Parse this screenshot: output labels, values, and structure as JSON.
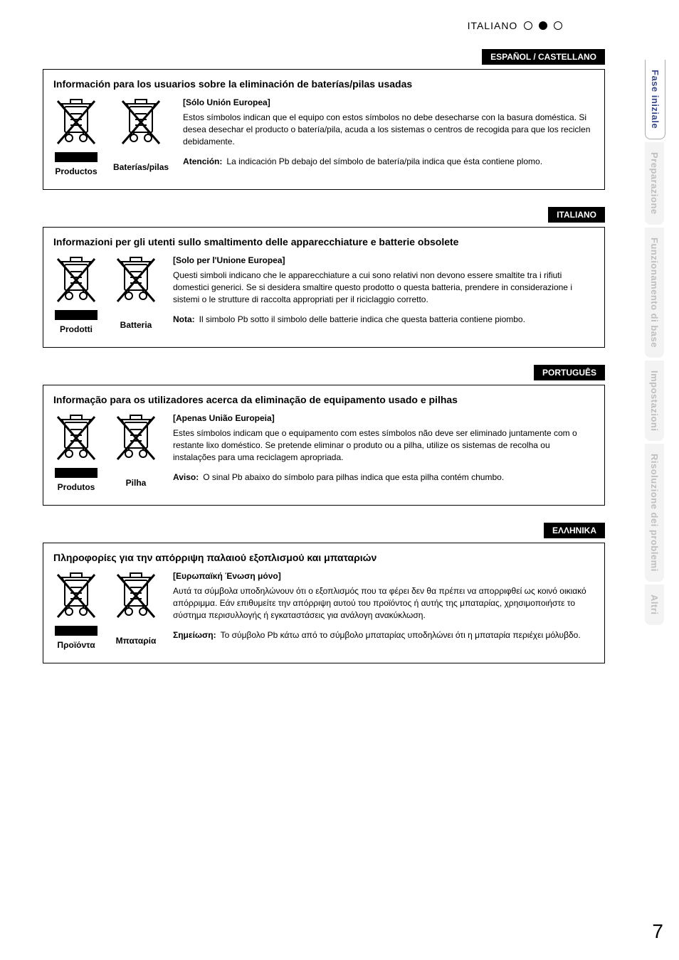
{
  "header_language": "ITALIANO",
  "page_number": "7",
  "side_tabs": [
    {
      "label": "Fase iniziale",
      "active": true
    },
    {
      "label": "Preparazione",
      "active": false
    },
    {
      "label": "Funzionamento di base",
      "active": false
    },
    {
      "label": "Impostazioni",
      "active": false
    },
    {
      "label": "Risoluzione dei problemi",
      "active": false
    },
    {
      "label": "Altri",
      "active": false
    }
  ],
  "sections": [
    {
      "badge": "ESPAÑOL / CASTELLANO",
      "title": "Información para los usuarios sobre la eliminación de baterías/pilas usadas",
      "product_label": "Productos",
      "battery_label": "Baterías/pilas",
      "subtitle": "[Sólo Unión Europea]",
      "body": "Estos símbolos indican que el equipo con estos símbolos no debe desecharse con la basura doméstica. Si desea desechar el producto o batería/pila, acuda a los sistemas o centros de recogida para que los reciclen debidamente.",
      "note_label": "Atención:",
      "note_text": "La indicación Pb debajo del símbolo de batería/pila indica que ésta contiene plomo."
    },
    {
      "badge": "ITALIANO",
      "title": "Informazioni per gli utenti sullo smaltimento delle apparecchiature e batterie obsolete",
      "product_label": "Prodotti",
      "battery_label": "Batteria",
      "subtitle": "[Solo per l'Unione Europea]",
      "body": "Questi simboli indicano che le apparecchiature a cui sono relativi non devono essere smaltite tra i rifiuti domestici generici. Se si desidera smaltire questo prodotto o questa batteria, prendere in considerazione i sistemi o le strutture di raccolta appropriati per il riciclaggio corretto.",
      "note_label": "Nota:",
      "note_text": "Il simbolo Pb sotto il simbolo delle batterie indica che questa batteria contiene piombo."
    },
    {
      "badge": "PORTUGUÊS",
      "title": "Informação para os utilizadores acerca da eliminação de equipamento usado e pilhas",
      "product_label": "Produtos",
      "battery_label": "Pilha",
      "subtitle": "[Apenas União Europeia]",
      "body": "Estes símbolos indicam que o equipamento com estes símbolos não deve ser eliminado juntamente com o restante lixo doméstico. Se pretende eliminar o produto ou a pilha, utilize os sistemas de recolha ou  instalações para uma reciclagem apropriada.",
      "note_label": "Aviso:",
      "note_text": "O sinal Pb abaixo do símbolo para pilhas indica que esta pilha contém chumbo."
    },
    {
      "badge": "ΕΛΛΗΝΙΚΑ",
      "title": "Πληροφορίες για την απόρριψη παλαιού εξοπλισμού και μπαταριών",
      "product_label": "Προϊόντα",
      "battery_label": "Μπαταρία",
      "subtitle": "[Ευρωπαϊκή Ένωση μόνο]",
      "body": "Αυτά τα σύμβολα υποδηλώνουν ότι ο εξοπλισμός που τα φέρει δεν θα πρέπει να απορριφθεί ως κοινό οικιακό απόρριμμα. Εάν επιθυμείτε την απόρριψη αυτού του προϊόντος ή αυτής της μπαταρίας, χρησιμοποιήστε το σύστημα περισυλλογής ή εγκαταστάσεις για ανάλογη ανακύκλωση.",
      "note_label": "Σημείωση:",
      "note_text": "Το σύμβολο Pb κάτω από το σύμβολο μπαταρίας υποδηλώνει ότι η μπαταρία περιέχει μόλυβδο."
    }
  ]
}
